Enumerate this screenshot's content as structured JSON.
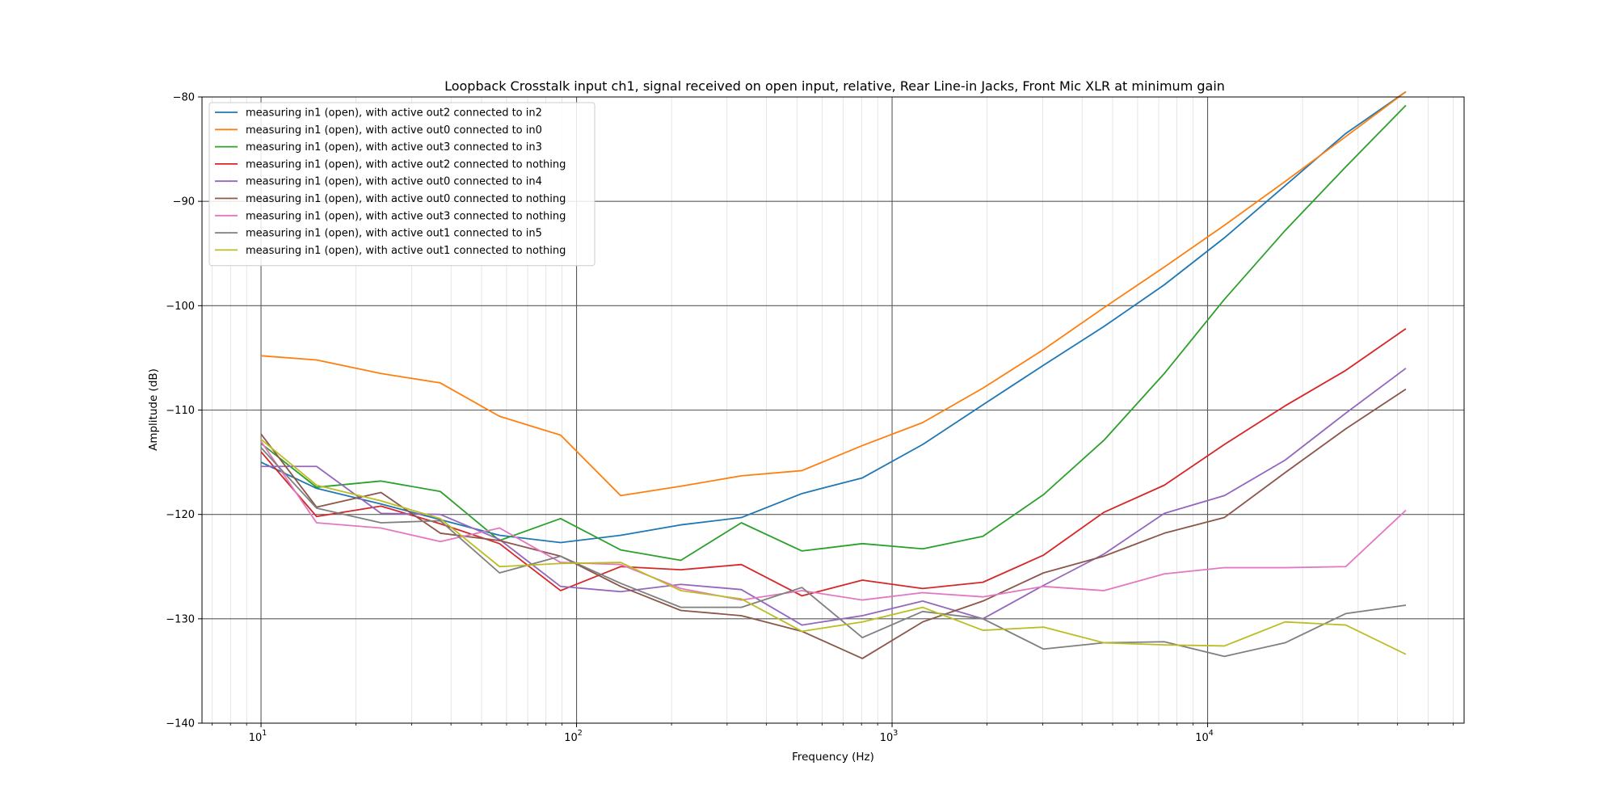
{
  "chart_data": {
    "type": "line",
    "title": "Loopback Crosstalk input ch1, signal received on open input, relative, Rear Line-in Jacks, Front Mic XLR at minimum gain",
    "xlabel": "Frequency (Hz)",
    "ylabel": "Amplitude (dB)",
    "xscale": "log",
    "xlim": [
      6.5,
      65000
    ],
    "ylim": [
      -140,
      -80
    ],
    "yticks": [
      -140,
      -130,
      -120,
      -110,
      -100,
      -90,
      -80
    ],
    "xticks": [
      {
        "value": 10,
        "base": "10",
        "exp": "1"
      },
      {
        "value": 100,
        "base": "10",
        "exp": "2"
      },
      {
        "value": 1000,
        "base": "10",
        "exp": "3"
      },
      {
        "value": 10000,
        "base": "10",
        "exp": "4"
      }
    ],
    "grid": true,
    "legend": "top-left",
    "x": [
      10,
      15,
      24,
      37,
      57,
      89,
      138,
      214,
      333,
      518,
      805,
      1250,
      1940,
      3020,
      4690,
      7290,
      11300,
      17600,
      27400,
      42500
    ],
    "series": [
      {
        "name": "measuring in1 (open), with active out2 connected to in2",
        "color": "#1f77b4",
        "values": [
          -115.0,
          -117.5,
          -119.0,
          -120.5,
          -122.0,
          -122.7,
          -122.0,
          -121.0,
          -120.3,
          -118.0,
          -116.5,
          -113.3,
          -109.5,
          -105.7,
          -102.0,
          -98.0,
          -93.5,
          -88.5,
          -83.5,
          -79.5
        ]
      },
      {
        "name": "measuring in1 (open), with active out0 connected to in0",
        "color": "#ff7f0e",
        "values": [
          -104.8,
          -105.2,
          -106.5,
          -107.4,
          -110.6,
          -112.4,
          -118.2,
          -117.3,
          -116.3,
          -115.8,
          -113.4,
          -111.2,
          -107.9,
          -104.2,
          -100.2,
          -96.3,
          -92.3,
          -88.1,
          -83.8,
          -79.5
        ]
      },
      {
        "name": "measuring in1 (open), with active out3 connected to in3",
        "color": "#2ca02c",
        "values": [
          -113.2,
          -117.4,
          -116.8,
          -117.8,
          -122.5,
          -120.4,
          -123.4,
          -124.4,
          -120.8,
          -123.5,
          -122.8,
          -123.3,
          -122.1,
          -118.1,
          -112.9,
          -106.5,
          -99.4,
          -92.8,
          -86.7,
          -80.8
        ]
      },
      {
        "name": "measuring in1 (open), with active out2 connected to nothing",
        "color": "#d62728",
        "values": [
          -114.0,
          -120.2,
          -119.2,
          -120.9,
          -122.8,
          -127.3,
          -125.0,
          -125.3,
          -124.8,
          -127.8,
          -126.3,
          -127.1,
          -126.5,
          -123.9,
          -119.8,
          -117.2,
          -113.3,
          -109.6,
          -106.2,
          -102.2
        ]
      },
      {
        "name": "measuring in1 (open), with active out0 connected to in4",
        "color": "#9467bd",
        "values": [
          -115.4,
          -115.4,
          -119.9,
          -120.0,
          -122.4,
          -126.9,
          -127.4,
          -126.7,
          -127.2,
          -130.6,
          -129.7,
          -128.3,
          -130.0,
          -126.8,
          -123.8,
          -119.9,
          -118.2,
          -114.8,
          -110.3,
          -106.0
        ]
      },
      {
        "name": "measuring in1 (open), with active out0 connected to nothing",
        "color": "#8c564b",
        "values": [
          -112.3,
          -119.3,
          -117.9,
          -121.8,
          -122.5,
          -124.0,
          -126.9,
          -129.2,
          -129.7,
          -131.2,
          -133.8,
          -130.3,
          -128.3,
          -125.6,
          -124.0,
          -121.8,
          -120.3,
          -116.0,
          -111.8,
          -108.0
        ]
      },
      {
        "name": "measuring in1 (open), with active out3 connected to nothing",
        "color": "#e377c2",
        "values": [
          -113.0,
          -120.8,
          -121.3,
          -122.6,
          -121.3,
          -124.6,
          -124.8,
          -127.1,
          -128.2,
          -127.3,
          -128.2,
          -127.5,
          -127.9,
          -126.9,
          -127.3,
          -125.7,
          -125.1,
          -125.1,
          -125.0,
          -119.6
        ]
      },
      {
        "name": "measuring in1 (open), with active out1 connected to in5",
        "color": "#7f7f7f",
        "values": [
          -113.6,
          -119.4,
          -120.8,
          -120.6,
          -125.6,
          -124.0,
          -126.6,
          -128.9,
          -128.9,
          -127.0,
          -131.8,
          -129.3,
          -130.0,
          -132.9,
          -132.3,
          -132.2,
          -133.6,
          -132.3,
          -129.5,
          -128.7
        ]
      },
      {
        "name": "measuring in1 (open), with active out1 connected to nothing",
        "color": "#bcbd22",
        "values": [
          -112.8,
          -117.2,
          -118.7,
          -120.4,
          -125.0,
          -124.7,
          -124.6,
          -127.3,
          -128.1,
          -131.2,
          -130.3,
          -128.9,
          -131.1,
          -130.8,
          -132.3,
          -132.5,
          -132.6,
          -130.3,
          -130.6,
          -133.4
        ]
      }
    ]
  }
}
